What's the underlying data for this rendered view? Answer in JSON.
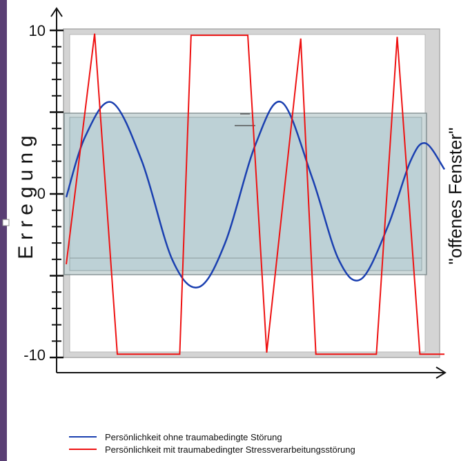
{
  "diagram": {
    "ylabel": "Erregung",
    "window_label": "\"offenes Fenster\"",
    "ticks": [
      "10",
      "0",
      "-10"
    ],
    "y_range": [
      -10,
      10
    ],
    "window_range": [
      -5,
      5
    ],
    "colors": {
      "healthy": "#1a3fb0",
      "trauma": "#ee1111",
      "window_fill": "#bcd1d6",
      "frame": "#c8c8c8",
      "left_strip": "#5a3f74"
    },
    "series": [
      {
        "name": "Persönlichkeit ohne traumabedingte Störung",
        "key": "healthy",
        "points": [
          [
            0.0,
            -0.2
          ],
          [
            0.05,
            3.5
          ],
          [
            0.12,
            5.6
          ],
          [
            0.2,
            2
          ],
          [
            0.28,
            -4
          ],
          [
            0.35,
            -5.7
          ],
          [
            0.42,
            -3
          ],
          [
            0.5,
            3
          ],
          [
            0.57,
            5.6
          ],
          [
            0.65,
            1
          ],
          [
            0.72,
            -4
          ],
          [
            0.78,
            -5.2
          ],
          [
            0.85,
            -2
          ],
          [
            0.91,
            2
          ],
          [
            0.95,
            3.1
          ],
          [
            1.0,
            1.5
          ]
        ]
      },
      {
        "name": "Persönlichkeit mit traumabedingter Stressverarbeitungsstörung",
        "key": "trauma",
        "points": [
          [
            0.0,
            -4.3
          ],
          [
            0.075,
            9.8
          ],
          [
            0.135,
            -9.8
          ],
          [
            0.3,
            -9.8
          ],
          [
            0.33,
            9.7
          ],
          [
            0.48,
            9.7
          ],
          [
            0.53,
            -9.7
          ],
          [
            0.62,
            9.5
          ],
          [
            0.66,
            -9.8
          ],
          [
            0.82,
            -9.8
          ],
          [
            0.875,
            9.6
          ],
          [
            0.935,
            -9.8
          ],
          [
            1.0,
            -9.8
          ]
        ]
      }
    ]
  }
}
